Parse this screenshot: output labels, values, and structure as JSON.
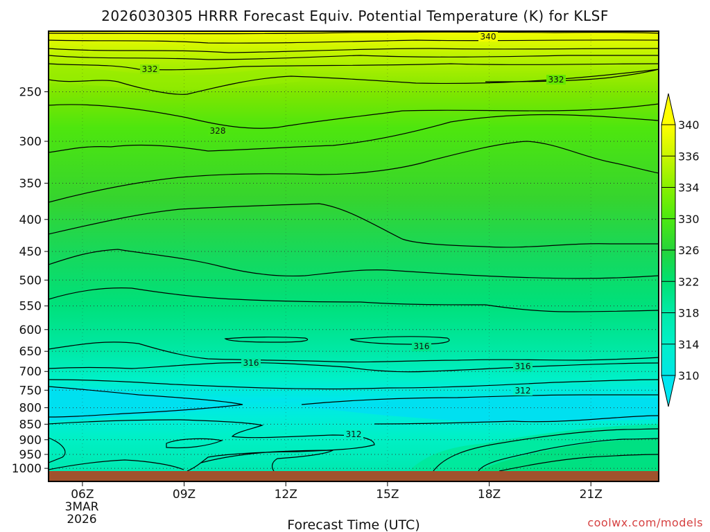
{
  "chart_data": {
    "type": "heatmap",
    "title": "2026030305 HRRR Forecast Equiv. Potential Temperature (K) for KLSF",
    "xlabel": "Forecast Time (UTC)",
    "credit": "coolwx.com/models",
    "y_axis": {
      "scale": "log-pressure",
      "ticks": [
        250,
        300,
        350,
        400,
        450,
        500,
        550,
        600,
        650,
        700,
        750,
        800,
        850,
        900,
        950,
        1000
      ],
      "tick_labels": [
        "250",
        "300",
        "350",
        "400",
        "450",
        "500",
        "550",
        "600",
        "650",
        "700",
        "750",
        "800",
        "850",
        "900",
        "950",
        "1000"
      ],
      "range": [
        1010,
        200
      ]
    },
    "x_axis": {
      "range_hours": [
        5,
        23
      ],
      "ticks": [
        6,
        9,
        12,
        15,
        18,
        21
      ],
      "tick_labels": [
        "06Z",
        "09Z",
        "12Z",
        "15Z",
        "18Z",
        "21Z"
      ],
      "date_lines": [
        "3MAR",
        "2026"
      ]
    },
    "grid": "dotted-horizontal-at-pressure-ticks",
    "colorbar": {
      "levels": [
        310,
        312,
        314,
        316,
        318,
        320,
        322,
        324,
        326,
        328,
        330,
        332,
        334,
        336,
        338,
        340
      ],
      "labels": [
        "340",
        "336",
        "334",
        "330",
        "326",
        "322",
        "318",
        "314",
        "310"
      ],
      "colors": [
        "#00e6e6",
        "#00f0d8",
        "#00f0c0",
        "#00eaa8",
        "#00e68c",
        "#00e070",
        "#10dc55",
        "#26d43a",
        "#3ae028",
        "#4eea10",
        "#66f000",
        "#88f000",
        "#aaf400",
        "#ccf600",
        "#eefa00",
        "#ffff00"
      ]
    },
    "contour_labels": [
      "340",
      "332",
      "332",
      "328",
      "316",
      "316",
      "316",
      "312",
      "312"
    ],
    "ground_color": "#a0522d"
  }
}
